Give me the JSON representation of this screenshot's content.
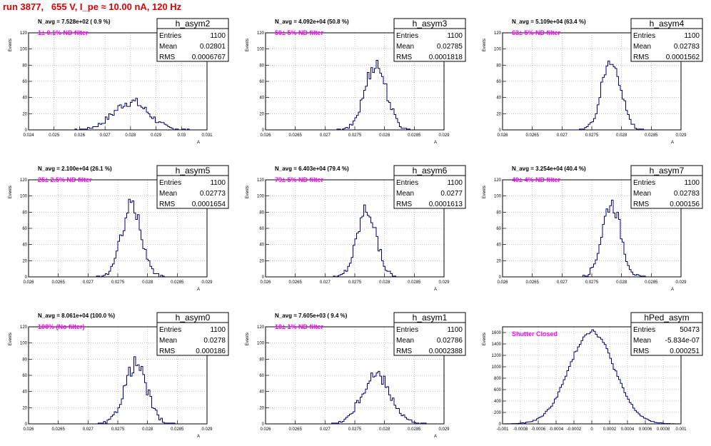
{
  "title": "run 3877,   655 V, I_pe ≈ 10.00 nA, 120 Hz",
  "stats_labels": {
    "entries": "Entries",
    "mean": "Mean",
    "rms": "RMS"
  },
  "colors": {
    "hist": "#00007f",
    "annot": "#ff00ff",
    "title": "#e00000",
    "grid": "#888888"
  },
  "chart_data": [
    {
      "type": "histogram",
      "name": "h_asym2",
      "entries": "1100",
      "mean": "0.02801",
      "rms": "0.0006767",
      "navg": "N_avg = 7.528e+02 ( 0.9 %)",
      "filter": "1± 0.1% ND filter",
      "xlim": [
        0.024,
        0.031
      ],
      "ylim": [
        0,
        120
      ],
      "mu": 0.02801,
      "sigma": 0.00068,
      "peak": 35,
      "xticks": [
        0.024,
        0.025,
        0.026,
        0.027,
        0.028,
        0.029,
        0.03,
        0.031
      ],
      "xticklabels": [
        "0.024",
        "0.025",
        "0.026",
        "0.027",
        "0.028",
        "0.029",
        "0.03",
        "0.031"
      ],
      "yticks": [
        0,
        20,
        40,
        60,
        80,
        100,
        120
      ],
      "yticklabels": [
        "0",
        "20",
        "40",
        "60",
        "80",
        "100",
        "120"
      ],
      "ylabel": "Events",
      "xlabel": "A",
      "grid": true,
      "legend": "top-right"
    },
    {
      "type": "histogram",
      "name": "h_asym3",
      "entries": "1100",
      "mean": "0.02785",
      "rms": "0.0001818",
      "navg": "N_avg = 4.092e+04 (50.8 %)",
      "filter": "50± 5% ND filter",
      "xlim": [
        0.026,
        0.029
      ],
      "ylim": [
        0,
        120
      ],
      "mu": 0.02785,
      "sigma": 0.00018,
      "peak": 82,
      "xticks": [
        0.026,
        0.0265,
        0.027,
        0.0275,
        0.028,
        0.0285,
        0.029
      ],
      "xticklabels": [
        "0.026",
        "0.0265",
        "0.027",
        "0.0275",
        "0.028",
        "0.0285",
        "0.029"
      ],
      "yticks": [
        0,
        20,
        40,
        60,
        80,
        100,
        120
      ],
      "yticklabels": [
        "0",
        "20",
        "40",
        "60",
        "80",
        "100",
        "120"
      ],
      "ylabel": "Events",
      "xlabel": "A",
      "grid": true,
      "legend": "top-right"
    },
    {
      "type": "histogram",
      "name": "h_asym4",
      "entries": "1100",
      "mean": "0.02783",
      "rms": "0.0001562",
      "navg": "N_avg = 5.109e+04 (63.4 %)",
      "filter": "63± 5% ND filter",
      "xlim": [
        0.026,
        0.029
      ],
      "ylim": [
        0,
        120
      ],
      "mu": 0.02783,
      "sigma": 0.000156,
      "peak": 90,
      "xticks": [
        0.026,
        0.0265,
        0.027,
        0.0275,
        0.028,
        0.0285,
        0.029
      ],
      "xticklabels": [
        "0.026",
        "0.0265",
        "0.027",
        "0.0275",
        "0.028",
        "0.0285",
        "0.029"
      ],
      "yticks": [
        0,
        20,
        40,
        60,
        80,
        100,
        120
      ],
      "yticklabels": [
        "0",
        "20",
        "40",
        "60",
        "80",
        "100",
        "120"
      ],
      "ylabel": "Events",
      "xlabel": "A",
      "grid": true,
      "legend": "top-right"
    },
    {
      "type": "histogram",
      "name": "h_asym5",
      "entries": "1100",
      "mean": "0.02773",
      "rms": "0.0001654",
      "navg": "N_avg = 2.100e+04 (26.1 %)",
      "filter": "25± 2.5% ND filter",
      "xlim": [
        0.026,
        0.029
      ],
      "ylim": [
        0,
        120
      ],
      "mu": 0.02773,
      "sigma": 0.000165,
      "peak": 88,
      "xticks": [
        0.026,
        0.0265,
        0.027,
        0.0275,
        0.028,
        0.0285,
        0.029
      ],
      "xticklabels": [
        "0.026",
        "0.0265",
        "0.027",
        "0.0275",
        "0.028",
        "0.0285",
        "0.029"
      ],
      "yticks": [
        0,
        20,
        40,
        60,
        80,
        100,
        120
      ],
      "yticklabels": [
        "0",
        "20",
        "40",
        "60",
        "80",
        "100",
        "120"
      ],
      "ylabel": "Events",
      "xlabel": "A",
      "grid": true,
      "legend": "top-right"
    },
    {
      "type": "histogram",
      "name": "h_asym6",
      "entries": "1100",
      "mean": "0.0277",
      "rms": "0.0001613",
      "navg": "N_avg = 6.403e+04 (79.4 %)",
      "filter": "79± 5% ND filter",
      "xlim": [
        0.026,
        0.029
      ],
      "ylim": [
        0,
        120
      ],
      "mu": 0.0277,
      "sigma": 0.000161,
      "peak": 84,
      "xticks": [
        0.026,
        0.0265,
        0.027,
        0.0275,
        0.028,
        0.0285,
        0.029
      ],
      "xticklabels": [
        "0.026",
        "0.0265",
        "0.027",
        "0.0275",
        "0.028",
        "0.0285",
        "0.029"
      ],
      "yticks": [
        0,
        20,
        40,
        60,
        80,
        100,
        120
      ],
      "yticklabels": [
        "0",
        "20",
        "40",
        "60",
        "80",
        "100",
        "120"
      ],
      "ylabel": "Events",
      "xlabel": "A",
      "grid": true,
      "legend": "top-right"
    },
    {
      "type": "histogram",
      "name": "h_asym7",
      "entries": "1100",
      "mean": "0.02783",
      "rms": "0.000156",
      "navg": "N_avg = 3.254e+04 (40.4 %)",
      "filter": "40± 4% ND filter",
      "xlim": [
        0.026,
        0.029
      ],
      "ylim": [
        0,
        120
      ],
      "mu": 0.02783,
      "sigma": 0.000156,
      "peak": 92,
      "xticks": [
        0.026,
        0.0265,
        0.027,
        0.0275,
        0.028,
        0.0285,
        0.029
      ],
      "xticklabels": [
        "0.026",
        "0.0265",
        "0.027",
        "0.0275",
        "0.028",
        "0.0285",
        "0.029"
      ],
      "yticks": [
        0,
        20,
        40,
        60,
        80,
        100,
        120
      ],
      "yticklabels": [
        "0",
        "20",
        "40",
        "60",
        "80",
        "100",
        "120"
      ],
      "ylabel": "Events",
      "xlabel": "A",
      "grid": true,
      "legend": "top-right"
    },
    {
      "type": "histogram",
      "name": "h_asym0",
      "entries": "1100",
      "mean": "0.0278",
      "rms": "0.000186",
      "navg": "N_avg = 8.061e+04 (100.0 %)",
      "filter": "100% (No filter)",
      "xlim": [
        0.026,
        0.029
      ],
      "ylim": [
        0,
        120
      ],
      "mu": 0.0278,
      "sigma": 0.000186,
      "peak": 74,
      "xticks": [
        0.026,
        0.0265,
        0.027,
        0.0275,
        0.028,
        0.0285,
        0.029
      ],
      "xticklabels": [
        "0.026",
        "0.0265",
        "0.027",
        "0.0275",
        "0.028",
        "0.0285",
        "0.029"
      ],
      "yticks": [
        0,
        20,
        40,
        60,
        80,
        100,
        120
      ],
      "yticklabels": [
        "0",
        "20",
        "40",
        "60",
        "80",
        "100",
        "120"
      ],
      "ylabel": "Events",
      "xlabel": "A",
      "grid": true,
      "legend": "top-right"
    },
    {
      "type": "histogram",
      "name": "h_asym1",
      "entries": "1100",
      "mean": "0.02786",
      "rms": "0.0002388",
      "navg": "N_avg = 7.605e+03 ( 9.4 %)",
      "filter": "10± 1% ND filter",
      "xlim": [
        0.026,
        0.029
      ],
      "ylim": [
        0,
        120
      ],
      "mu": 0.02786,
      "sigma": 0.00024,
      "peak": 60,
      "xticks": [
        0.026,
        0.0265,
        0.027,
        0.0275,
        0.028,
        0.0285,
        0.029
      ],
      "xticklabels": [
        "0.026",
        "0.0265",
        "0.027",
        "0.0275",
        "0.028",
        "0.0285",
        "0.029"
      ],
      "yticks": [
        0,
        20,
        40,
        60,
        80,
        100,
        120
      ],
      "yticklabels": [
        "0",
        "20",
        "40",
        "60",
        "80",
        "100",
        "120"
      ],
      "ylabel": "Events",
      "xlabel": "A",
      "grid": true,
      "legend": "top-right"
    },
    {
      "type": "histogram",
      "name": "hPed_asym",
      "entries": "50473",
      "mean": "-5.834e-07",
      "rms": "0.000251",
      "navg": "",
      "filter": "Shutter Closed",
      "xlim": [
        -0.001,
        0.001
      ],
      "ylim": [
        0,
        1700
      ],
      "mu": -6e-07,
      "sigma": 0.000251,
      "peak": 1630,
      "xticks": [
        -0.001,
        -0.0008,
        -0.0006,
        -0.0004,
        -0.0002,
        0,
        0.0002,
        0.0004,
        0.0006,
        0.0008,
        0.001
      ],
      "xticklabels": [
        "-0.001",
        "-0.0008",
        "-0.0006",
        "-0.0004",
        "-0.0002",
        "0",
        "0.0002",
        "0.0004",
        "0.0006",
        "0.0008",
        "0.001"
      ],
      "yticks": [
        0,
        200,
        400,
        600,
        800,
        1000,
        1200,
        1400,
        1600
      ],
      "yticklabels": [
        "0",
        "200",
        "400",
        "600",
        "800",
        "1000",
        "1200",
        "1400",
        "1600"
      ],
      "ylabel": "Events",
      "xlabel": "",
      "grid": true,
      "legend": "top-right"
    }
  ]
}
